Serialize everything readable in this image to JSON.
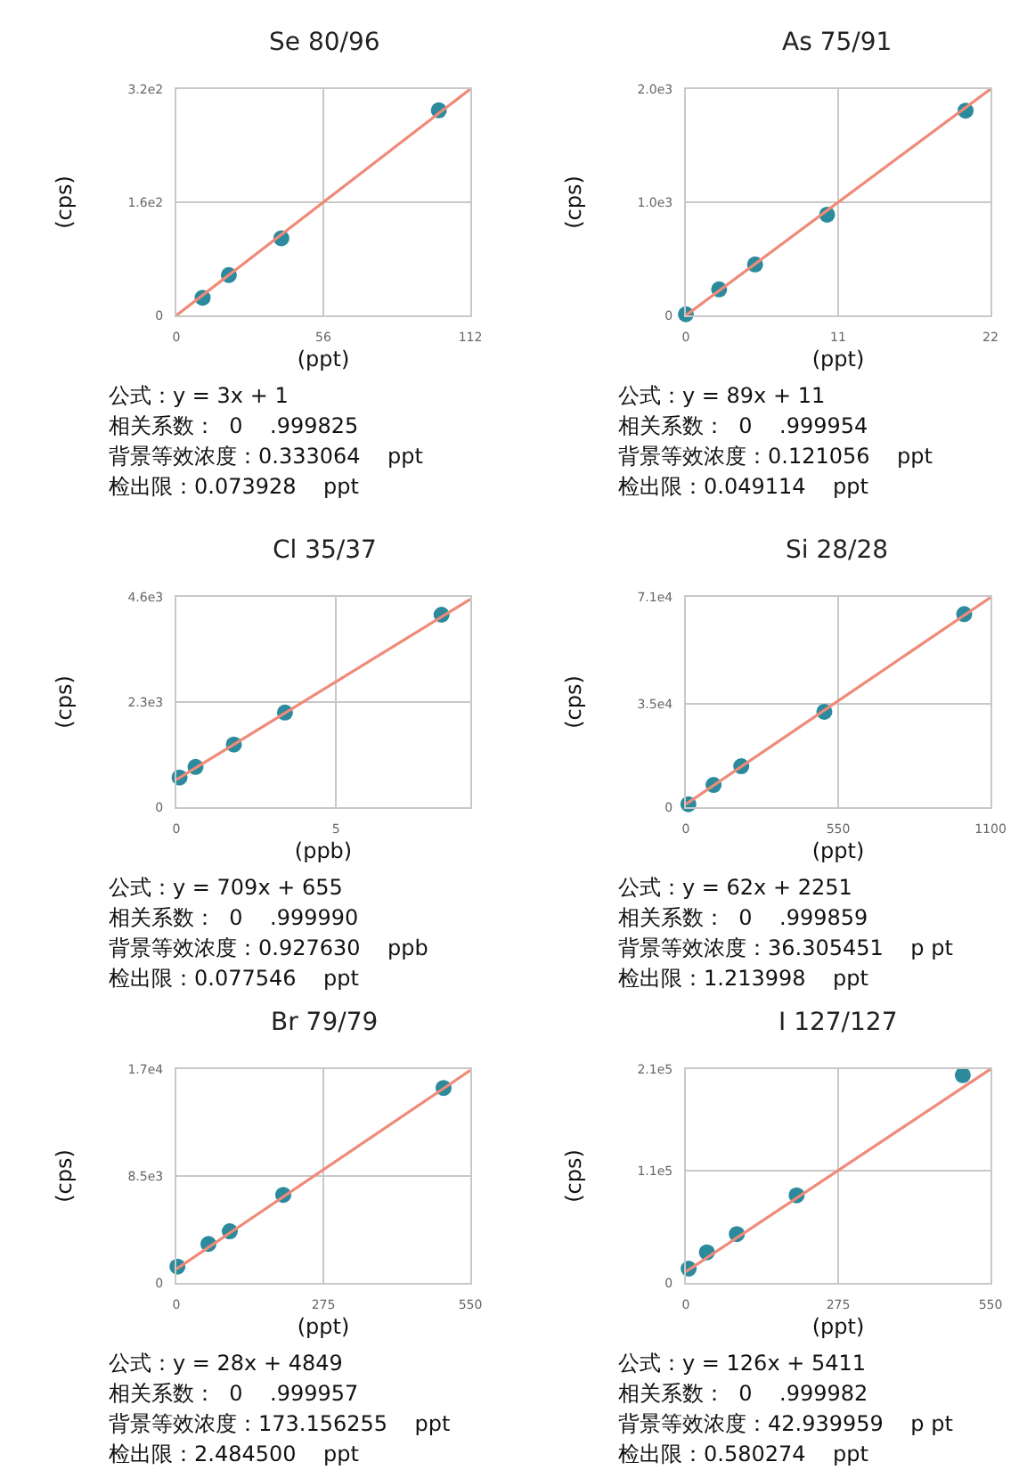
{
  "chart_data": [
    {
      "type": "scatter",
      "title": "Se 80/96",
      "xlabel": "(ppt)",
      "ylabel": "(cps)",
      "grid": true,
      "xlim": [
        0,
        112
      ],
      "ylim": [
        0,
        320
      ],
      "xticks": [
        0,
        56,
        112
      ],
      "yticks": [
        0,
        {
          "value": 160,
          "label": "1.6e2"
        },
        {
          "value": 320,
          "label": "3.2e2"
        }
      ],
      "series": [
        {
          "marker": "circle",
          "color": "#2b8a9c",
          "x": [
            10,
            20,
            40,
            100
          ],
          "values": [
            25,
            57,
            109,
            290
          ]
        },
        {
          "type": "line",
          "color": "#f08a78",
          "x": [
            0,
            112
          ],
          "values": [
            0,
            320
          ]
        }
      ],
      "annotations": [
        "公式：y = 3x + 1",
        "相关系数：  0    .999825",
        "背景等效浓度：0.333064    ppt",
        "检出限：0.073928    ppt"
      ]
    },
    {
      "type": "scatter",
      "title": "As 75/91",
      "xlabel": "(ppt)",
      "ylabel": "(cps)",
      "grid": true,
      "xlim": [
        0,
        22
      ],
      "ylim": [
        0,
        2000
      ],
      "xticks": [
        0,
        11,
        22
      ],
      "yticks": [
        0,
        {
          "value": 1000,
          "label": "1.0e3"
        },
        {
          "value": 2000,
          "label": "2.0e3"
        }
      ],
      "series": [
        {
          "marker": "circle",
          "color": "#2b8a9c",
          "x": [
            0,
            2.4,
            5,
            10.2,
            20.2
          ],
          "values": [
            10,
            230,
            450,
            890,
            1810
          ]
        },
        {
          "type": "line",
          "color": "#f08a78",
          "x": [
            0,
            22
          ],
          "values": [
            0,
            2000
          ]
        }
      ],
      "annotations": [
        "公式：y = 89x + 11",
        "相关系数：  0    .999954",
        "背景等效浓度：0.121056    ppt",
        "检出限：0.049114    ppt"
      ]
    },
    {
      "type": "scatter",
      "title": "Cl 35/37",
      "xlabel": "(ppb)",
      "ylabel": "(cps)",
      "grid": true,
      "xlim": [
        0,
        9.2
      ],
      "ylim": [
        0,
        4600
      ],
      "xticks": [
        0,
        5
      ],
      "yticks": [
        0,
        {
          "value": 2300,
          "label": "2.3e3"
        },
        {
          "value": 4600,
          "label": "4.6e3"
        }
      ],
      "series": [
        {
          "marker": "circle",
          "color": "#2b8a9c",
          "x": [
            0.1,
            0.6,
            1.8,
            3.4,
            8.3
          ],
          "values": [
            650,
            880,
            1370,
            2070,
            4210
          ]
        },
        {
          "type": "line",
          "color": "#f08a78",
          "x": [
            0,
            9.2
          ],
          "values": [
            600,
            4550
          ]
        }
      ],
      "annotations": [
        "公式：y = 709x + 655",
        "相关系数：  0    .999990",
        "背景等效浓度：0.927630    ppb",
        "检出限：0.077546    ppt"
      ]
    },
    {
      "type": "scatter",
      "title": "Si 28/28",
      "xlabel": "(ppt)",
      "ylabel": "(cps)",
      "grid": true,
      "xlim": [
        0,
        1100
      ],
      "ylim": [
        0,
        71000
      ],
      "xticks": [
        0,
        550,
        1100
      ],
      "yticks": [
        0,
        {
          "value": 35000,
          "label": "3.5e4"
        },
        {
          "value": 71000,
          "label": "7.1e4"
        }
      ],
      "series": [
        {
          "marker": "circle",
          "color": "#2b8a9c",
          "x": [
            9,
            100,
            200,
            500,
            1005
          ],
          "values": [
            1000,
            7500,
            13800,
            32200,
            65200
          ]
        },
        {
          "type": "line",
          "color": "#f08a78",
          "x": [
            0,
            1100
          ],
          "values": [
            1000,
            70800
          ]
        }
      ],
      "annotations": [
        "公式：y = 62x + 2251",
        "相关系数：  0    .999859",
        "背景等效浓度：36.305451    p pt",
        "检出限：1.213998    ppt"
      ]
    },
    {
      "type": "scatter",
      "title": "Br 79/79",
      "xlabel": "(ppt)",
      "ylabel": "(cps)",
      "grid": true,
      "xlim": [
        0,
        550
      ],
      "ylim": [
        0,
        17000
      ],
      "xticks": [
        0,
        275,
        550
      ],
      "yticks": [
        0,
        {
          "value": 8500,
          "label": "8.5e3"
        },
        {
          "value": 17000,
          "label": "1.7e4"
        }
      ],
      "series": [
        {
          "marker": "circle",
          "color": "#2b8a9c",
          "x": [
            2,
            60,
            100,
            200,
            500
          ],
          "values": [
            1300,
            3100,
            4100,
            7000,
            15500
          ]
        },
        {
          "type": "line",
          "color": "#f08a78",
          "x": [
            0,
            550
          ],
          "values": [
            1100,
            16900
          ]
        }
      ],
      "annotations": [
        "公式：y = 28x + 4849",
        "相关系数：  0    .999957",
        "背景等效浓度：173.156255    ppt",
        "检出限：2.484500    ppt"
      ]
    },
    {
      "type": "scatter",
      "title": "I 127/127",
      "xlabel": "(ppt)",
      "ylabel": "(cps)",
      "grid": true,
      "xlim": [
        0,
        550
      ],
      "ylim": [
        0,
        210000
      ],
      "xticks": [
        0,
        275,
        550
      ],
      "yticks": [
        0,
        {
          "value": 110000,
          "label": "1.1e5"
        },
        {
          "value": 210000,
          "label": "2.1e5"
        }
      ],
      "series": [
        {
          "marker": "circle",
          "color": "#2b8a9c",
          "x": [
            5,
            38,
            92,
            200,
            500
          ],
          "values": [
            14000,
            30000,
            48000,
            86000,
            204000
          ]
        },
        {
          "type": "line",
          "color": "#f08a78",
          "x": [
            0,
            550
          ],
          "values": [
            11000,
            210000
          ]
        }
      ],
      "annotations": [
        "公式：y = 126x + 5411",
        "相关系数：  0    .999982",
        "背景等效浓度：42.939959    p pt",
        "检出限：0.580274    ppt"
      ]
    }
  ]
}
